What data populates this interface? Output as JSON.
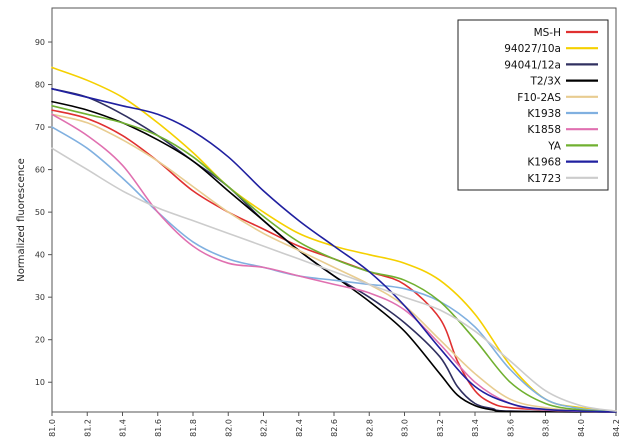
{
  "chart_data": {
    "type": "line",
    "title": "",
    "xlabel": "",
    "ylabel": "Normalized fluorescence",
    "xlim": [
      81.0,
      84.2
    ],
    "ylim": [
      3,
      98
    ],
    "x_ticks": [
      "81.0",
      "81.2",
      "81.4",
      "81.6",
      "81.8",
      "82.0",
      "82.2",
      "82.4",
      "82.6",
      "82.8",
      "83.0",
      "83.2",
      "83.4",
      "83.6",
      "83.8",
      "84.0",
      "84.2"
    ],
    "y_ticks": [
      "10",
      "20",
      "30",
      "40",
      "50",
      "60",
      "70",
      "80",
      "90"
    ],
    "grid": false,
    "legend_position": "top-right",
    "series": [
      {
        "name": "MS-H",
        "color": "#e03030",
        "points": [
          [
            81.0,
            74
          ],
          [
            81.2,
            72
          ],
          [
            81.4,
            68
          ],
          [
            81.6,
            62
          ],
          [
            81.8,
            55
          ],
          [
            82.0,
            50
          ],
          [
            82.2,
            46
          ],
          [
            82.4,
            42
          ],
          [
            82.6,
            39
          ],
          [
            82.8,
            36
          ],
          [
            83.0,
            33
          ],
          [
            83.2,
            25
          ],
          [
            83.3,
            15
          ],
          [
            83.4,
            8
          ],
          [
            83.5,
            5
          ],
          [
            83.6,
            4
          ],
          [
            83.8,
            3.5
          ],
          [
            84.0,
            3.2
          ],
          [
            84.2,
            3
          ]
        ]
      },
      {
        "name": "94027/10a",
        "color": "#f5d000",
        "points": [
          [
            81.0,
            84
          ],
          [
            81.2,
            81
          ],
          [
            81.4,
            77
          ],
          [
            81.6,
            71
          ],
          [
            81.8,
            64
          ],
          [
            82.0,
            56
          ],
          [
            82.2,
            50
          ],
          [
            82.4,
            45
          ],
          [
            82.6,
            42
          ],
          [
            82.8,
            40
          ],
          [
            83.0,
            38
          ],
          [
            83.2,
            34
          ],
          [
            83.4,
            26
          ],
          [
            83.6,
            14
          ],
          [
            83.8,
            6
          ],
          [
            84.0,
            4
          ],
          [
            84.2,
            3.2
          ]
        ]
      },
      {
        "name": "94041/12a",
        "color": "#303060",
        "points": [
          [
            81.0,
            79
          ],
          [
            81.2,
            77
          ],
          [
            81.4,
            73
          ],
          [
            81.6,
            68
          ],
          [
            81.8,
            62
          ],
          [
            82.0,
            56
          ],
          [
            82.2,
            48
          ],
          [
            82.4,
            41
          ],
          [
            82.6,
            35
          ],
          [
            82.8,
            30
          ],
          [
            83.0,
            24
          ],
          [
            83.2,
            16
          ],
          [
            83.3,
            9
          ],
          [
            83.4,
            5
          ],
          [
            83.5,
            3.8
          ],
          [
            83.6,
            3.2
          ],
          [
            84.2,
            3
          ]
        ]
      },
      {
        "name": "T2/3X",
        "color": "#000000",
        "points": [
          [
            81.0,
            76
          ],
          [
            81.2,
            74
          ],
          [
            81.4,
            71
          ],
          [
            81.6,
            67
          ],
          [
            81.8,
            62
          ],
          [
            82.0,
            55
          ],
          [
            82.2,
            48
          ],
          [
            82.4,
            41
          ],
          [
            82.6,
            35
          ],
          [
            82.8,
            29
          ],
          [
            83.0,
            22
          ],
          [
            83.2,
            12
          ],
          [
            83.3,
            7
          ],
          [
            83.4,
            4.5
          ],
          [
            83.5,
            3.5
          ],
          [
            83.6,
            3.1
          ],
          [
            84.2,
            3
          ]
        ]
      },
      {
        "name": "F10-2AS",
        "color": "#e8cc90",
        "points": [
          [
            81.0,
            73
          ],
          [
            81.2,
            71
          ],
          [
            81.4,
            67
          ],
          [
            81.6,
            62
          ],
          [
            81.8,
            56
          ],
          [
            82.0,
            50
          ],
          [
            82.2,
            45
          ],
          [
            82.4,
            41
          ],
          [
            82.6,
            37
          ],
          [
            82.8,
            33
          ],
          [
            83.0,
            28
          ],
          [
            83.2,
            20
          ],
          [
            83.4,
            12
          ],
          [
            83.6,
            6
          ],
          [
            83.8,
            4
          ],
          [
            84.0,
            3.3
          ],
          [
            84.2,
            3
          ]
        ]
      },
      {
        "name": "K1938",
        "color": "#80b0e0",
        "points": [
          [
            81.0,
            70
          ],
          [
            81.2,
            65
          ],
          [
            81.4,
            58
          ],
          [
            81.6,
            50
          ],
          [
            81.8,
            43
          ],
          [
            82.0,
            39
          ],
          [
            82.2,
            37
          ],
          [
            82.4,
            35
          ],
          [
            82.6,
            34
          ],
          [
            82.8,
            33
          ],
          [
            83.0,
            32
          ],
          [
            83.2,
            29
          ],
          [
            83.4,
            23
          ],
          [
            83.6,
            13
          ],
          [
            83.8,
            6
          ],
          [
            84.0,
            3.8
          ],
          [
            84.2,
            3.1
          ]
        ]
      },
      {
        "name": "K1858",
        "color": "#e070b0",
        "points": [
          [
            81.0,
            73
          ],
          [
            81.2,
            68
          ],
          [
            81.4,
            61
          ],
          [
            81.6,
            50
          ],
          [
            81.8,
            42
          ],
          [
            82.0,
            38
          ],
          [
            82.2,
            37
          ],
          [
            82.4,
            35
          ],
          [
            82.6,
            33
          ],
          [
            82.8,
            31
          ],
          [
            83.0,
            27
          ],
          [
            83.2,
            19
          ],
          [
            83.4,
            10
          ],
          [
            83.6,
            5
          ],
          [
            83.8,
            3.5
          ],
          [
            84.2,
            3
          ]
        ]
      },
      {
        "name": "YA",
        "color": "#70b030",
        "points": [
          [
            81.0,
            75
          ],
          [
            81.2,
            73
          ],
          [
            81.4,
            71
          ],
          [
            81.6,
            68
          ],
          [
            81.8,
            63
          ],
          [
            82.0,
            56
          ],
          [
            82.2,
            49
          ],
          [
            82.4,
            43
          ],
          [
            82.6,
            39
          ],
          [
            82.8,
            36
          ],
          [
            83.0,
            34
          ],
          [
            83.2,
            29
          ],
          [
            83.4,
            20
          ],
          [
            83.6,
            10
          ],
          [
            83.8,
            5
          ],
          [
            84.0,
            3.5
          ],
          [
            84.2,
            3
          ]
        ]
      },
      {
        "name": "K1968",
        "color": "#2020a0",
        "points": [
          [
            81.0,
            79
          ],
          [
            81.2,
            77
          ],
          [
            81.4,
            75
          ],
          [
            81.6,
            73
          ],
          [
            81.8,
            69
          ],
          [
            82.0,
            63
          ],
          [
            82.2,
            55
          ],
          [
            82.4,
            48
          ],
          [
            82.6,
            42
          ],
          [
            82.8,
            36
          ],
          [
            83.0,
            28
          ],
          [
            83.2,
            18
          ],
          [
            83.4,
            9
          ],
          [
            83.6,
            5
          ],
          [
            83.8,
            3.6
          ],
          [
            84.2,
            3
          ]
        ]
      },
      {
        "name": "K1723",
        "color": "#cccccc",
        "points": [
          [
            81.0,
            65
          ],
          [
            81.2,
            60
          ],
          [
            81.4,
            55
          ],
          [
            81.6,
            51
          ],
          [
            81.8,
            48
          ],
          [
            82.0,
            45
          ],
          [
            82.2,
            42
          ],
          [
            82.4,
            39
          ],
          [
            82.6,
            36
          ],
          [
            82.8,
            33
          ],
          [
            83.0,
            30
          ],
          [
            83.2,
            27
          ],
          [
            83.4,
            22
          ],
          [
            83.6,
            15
          ],
          [
            83.8,
            8
          ],
          [
            84.0,
            4.5
          ],
          [
            84.2,
            3.2
          ]
        ]
      }
    ]
  }
}
